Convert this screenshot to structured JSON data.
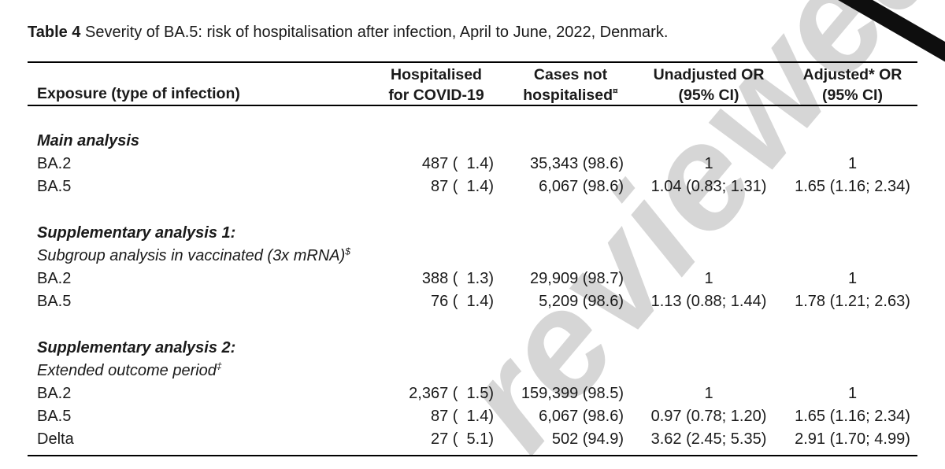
{
  "caption": {
    "label_bold": "Table 4",
    "label_rest": "Severity of BA.5: risk of hospitalisation after infection, April to June, 2022, Denmark."
  },
  "watermark": {
    "text": "reviewed",
    "color": "#d6d6d6"
  },
  "table": {
    "headers": {
      "exposure": "Exposure (type of infection)",
      "hospitalised": [
        "Hospitalised",
        "for COVID-19"
      ],
      "cases": [
        "Cases not",
        "hospitalised"
      ],
      "cases_sup": "¤",
      "unadjusted": [
        "Unadjusted OR",
        "(95% CI)"
      ],
      "adjusted": [
        "Adjusted* OR",
        "(95% CI)"
      ]
    },
    "sections": [
      {
        "heading": "Main analysis",
        "subtitle": "",
        "subtitle_sup": "",
        "rows": [
          {
            "label": "BA.2",
            "hospitalised": "487 (  1.4)",
            "cases": "35,343 (98.6)",
            "unadjusted": "1",
            "adjusted": "1"
          },
          {
            "label": "BA.5",
            "hospitalised": "87 (  1.4)",
            "cases": "6,067 (98.6)",
            "unadjusted": "1.04 (0.83; 1.31)",
            "adjusted": "1.65 (1.16; 2.34)"
          }
        ]
      },
      {
        "heading": "Supplementary analysis 1:",
        "subtitle": "Subgroup analysis in vaccinated (3x mRNA)",
        "subtitle_sup": "$",
        "rows": [
          {
            "label": "BA.2",
            "hospitalised": "388 (  1.3)",
            "cases": "29,909 (98.7)",
            "unadjusted": "1",
            "adjusted": "1"
          },
          {
            "label": "BA.5",
            "hospitalised": "76 (  1.4)",
            "cases": "5,209 (98.6)",
            "unadjusted": "1.13 (0.88; 1.44)",
            "adjusted": "1.78 (1.21; 2.63)"
          }
        ]
      },
      {
        "heading": "Supplementary analysis 2:",
        "subtitle": "Extended outcome period",
        "subtitle_sup": "‡",
        "rows": [
          {
            "label": "BA.2",
            "hospitalised": "2,367 (  1.5)",
            "cases": "159,399 (98.5)",
            "unadjusted": "1",
            "adjusted": "1"
          },
          {
            "label": "BA.5",
            "hospitalised": "87 (  1.4)",
            "cases": "6,067 (98.6)",
            "unadjusted": "0.97 (0.78; 1.20)",
            "adjusted": "1.65 (1.16; 2.34)"
          },
          {
            "label": "Delta",
            "hospitalised": "27 (  5.1)",
            "cases": "502 (94.9)",
            "unadjusted": "3.62 (2.45; 5.35)",
            "adjusted": "2.91 (1.70; 4.99)"
          }
        ]
      }
    ]
  }
}
